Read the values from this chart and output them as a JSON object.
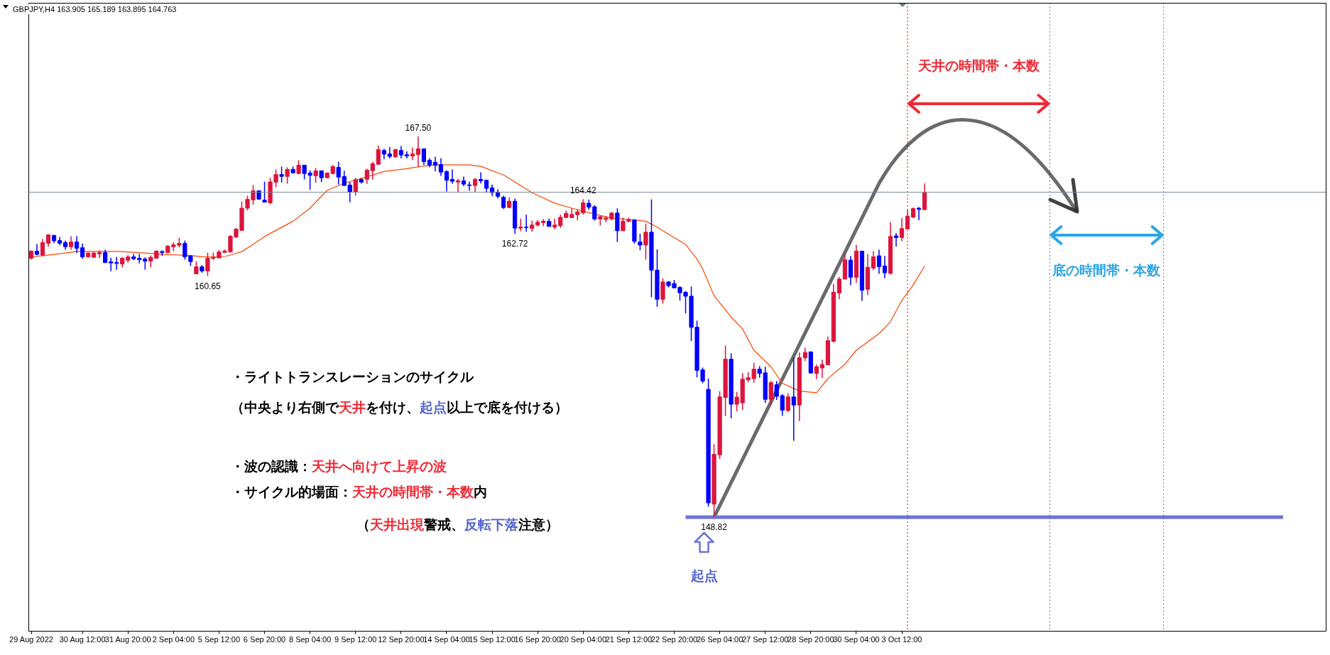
{
  "chart_data": {
    "type": "candlestick",
    "title": "GBPJPY,H4  163.905 165.189 163.895 164.763",
    "tick_labels": "x",
    "categories": [
      "29 Aug 2022",
      null,
      null,
      null,
      null,
      null,
      null,
      null,
      null,
      "30 Aug 12:00",
      null,
      null,
      null,
      null,
      null,
      null,
      null,
      "31 Aug 20:00",
      null,
      null,
      null,
      null,
      null,
      null,
      null,
      "2 Sep 04:00",
      null,
      null,
      null,
      null,
      null,
      null,
      null,
      "5 Sep 12:00",
      null,
      null,
      null,
      null,
      null,
      null,
      null,
      "6 Sep 20:00",
      null,
      null,
      null,
      null,
      null,
      null,
      null,
      "8 Sep 04:00",
      null,
      null,
      null,
      null,
      null,
      null,
      null,
      "9 Sep 12:00",
      null,
      null,
      null,
      null,
      null,
      null,
      null,
      "12 Sep 20:00",
      null,
      null,
      null,
      null,
      null,
      null,
      null,
      "14 Sep 04:00",
      null,
      null,
      null,
      null,
      null,
      null,
      null,
      "15 Sep 12:00",
      null,
      null,
      null,
      null,
      null,
      null,
      null,
      "16 Sep 20:00",
      null,
      null,
      null,
      null,
      null,
      null,
      null,
      "20 Sep 04:00",
      null,
      null,
      null,
      null,
      null,
      null,
      null,
      "21 Sep 12:00",
      null,
      null,
      null,
      null,
      null,
      null,
      null,
      "22 Sep 20:00",
      null,
      null,
      null,
      null,
      null,
      null,
      null,
      "26 Sep 04:00",
      null,
      null,
      null,
      null,
      null,
      null,
      null,
      "27 Sep 12:00",
      null,
      null,
      null,
      null,
      null,
      null,
      null,
      "28 Sep 20:00",
      null,
      null,
      null,
      null,
      null,
      null,
      null,
      "30 Sep 04:00",
      null,
      null,
      null,
      null,
      null,
      null,
      null,
      "3 Oct 12:00",
      null,
      null,
      null,
      null,
      null,
      null,
      null,
      null,
      null,
      null,
      null,
      null,
      null,
      null,
      null,
      null,
      null,
      null,
      null,
      null,
      null,
      null,
      null,
      null,
      null,
      null,
      null,
      null,
      null,
      null,
      null,
      null,
      null,
      null,
      null,
      null,
      null,
      null,
      null,
      null,
      null,
      null,
      null,
      null,
      null,
      null,
      null,
      null,
      null,
      null,
      null,
      null,
      null,
      null,
      null,
      null,
      null,
      null,
      null,
      null,
      null,
      null,
      null,
      null,
      null,
      null,
      null,
      null,
      null,
      null,
      null,
      null,
      null,
      null
    ],
    "ohlc": [
      [
        161.52,
        161.91,
        161.45,
        161.87
      ],
      [
        161.87,
        162.22,
        161.68,
        161.71
      ],
      [
        161.68,
        162.47,
        161.61,
        162.29
      ],
      [
        162.26,
        162.67,
        162.09,
        162.67
      ],
      [
        162.64,
        162.67,
        162.26,
        162.38
      ],
      [
        162.39,
        162.57,
        162.16,
        162.26
      ],
      [
        162.29,
        162.39,
        161.94,
        162.09
      ],
      [
        162.09,
        162.6,
        161.94,
        162.32
      ],
      [
        162.32,
        162.6,
        161.78,
        162.01
      ],
      [
        162.04,
        162.25,
        161.5,
        161.59
      ],
      [
        161.59,
        161.8,
        161.57,
        161.78
      ],
      [
        161.57,
        161.83,
        161.57,
        161.78
      ],
      [
        161.74,
        161.91,
        161.52,
        161.8
      ],
      [
        161.8,
        161.94,
        161.29,
        161.31
      ],
      [
        161.35,
        161.54,
        160.89,
        161.29
      ],
      [
        161.31,
        161.59,
        160.96,
        161.27
      ],
      [
        161.24,
        161.57,
        161.07,
        161.53
      ],
      [
        161.43,
        161.68,
        161.31,
        161.59
      ],
      [
        161.59,
        161.73,
        161.43,
        161.5
      ],
      [
        161.52,
        161.73,
        161.27,
        161.45
      ],
      [
        161.48,
        161.57,
        160.96,
        161.38
      ],
      [
        161.38,
        161.66,
        161.08,
        161.57
      ],
      [
        161.52,
        161.91,
        161.5,
        161.87
      ],
      [
        161.85,
        161.91,
        161.64,
        161.8
      ],
      [
        161.8,
        162.17,
        161.78,
        162.11
      ],
      [
        162.09,
        162.3,
        161.87,
        162.18
      ],
      [
        162.16,
        162.53,
        162.05,
        162.25
      ],
      [
        162.25,
        162.39,
        161.46,
        161.59
      ],
      [
        161.64,
        161.68,
        161.14,
        161.36
      ],
      [
        160.76,
        161.37,
        160.76,
        161.1
      ],
      [
        161.1,
        161.19,
        160.81,
        160.9
      ],
      [
        160.9,
        161.8,
        160.65,
        161.52
      ],
      [
        161.52,
        161.8,
        161.43,
        161.57
      ],
      [
        161.54,
        161.94,
        161.52,
        161.83
      ],
      [
        161.81,
        161.95,
        161.8,
        161.88
      ],
      [
        161.83,
        162.66,
        161.81,
        162.6
      ],
      [
        162.57,
        163.01,
        162.51,
        162.95
      ],
      [
        162.89,
        164.31,
        162.86,
        163.98
      ],
      [
        163.98,
        164.59,
        163.87,
        164.41
      ],
      [
        164.39,
        165.12,
        164.15,
        164.83
      ],
      [
        164.83,
        164.83,
        164.39,
        164.42
      ],
      [
        164.37,
        165.28,
        164.27,
        164.27
      ],
      [
        164.24,
        165.47,
        164.17,
        165.27
      ],
      [
        165.26,
        165.88,
        165.01,
        165.63
      ],
      [
        165.63,
        166.02,
        165.23,
        165.54
      ],
      [
        165.54,
        165.98,
        165.18,
        165.88
      ],
      [
        165.88,
        166.02,
        165.68,
        165.71
      ],
      [
        165.68,
        166.33,
        165.64,
        166.09
      ],
      [
        166.09,
        166.09,
        165.39,
        165.68
      ],
      [
        165.7,
        165.84,
        164.88,
        165.59
      ],
      [
        165.57,
        165.95,
        165.23,
        165.81
      ],
      [
        165.81,
        165.81,
        165.26,
        165.47
      ],
      [
        165.47,
        165.73,
        165.44,
        165.7
      ],
      [
        165.68,
        166.1,
        165.63,
        166.02
      ],
      [
        165.98,
        166.26,
        165.14,
        165.5
      ],
      [
        165.53,
        165.81,
        165.09,
        165.09
      ],
      [
        165.11,
        165.26,
        164.27,
        164.77
      ],
      [
        164.77,
        165.46,
        164.59,
        165.38
      ],
      [
        165.39,
        165.46,
        165.19,
        165.26
      ],
      [
        165.4,
        165.91,
        165.17,
        165.84
      ],
      [
        165.82,
        166.25,
        165.38,
        166.16
      ],
      [
        166.13,
        167.06,
        166.13,
        166.85
      ],
      [
        166.81,
        166.89,
        166.38,
        166.63
      ],
      [
        166.64,
        166.99,
        166.42,
        166.52
      ],
      [
        166.5,
        166.89,
        166.45,
        166.85
      ],
      [
        166.81,
        167.03,
        166.42,
        166.59
      ],
      [
        166.6,
        166.77,
        166.42,
        166.54
      ],
      [
        166.54,
        166.96,
        166.34,
        166.64
      ],
      [
        166.61,
        167.5,
        166.02,
        166.89
      ],
      [
        166.89,
        166.89,
        166.1,
        166.26
      ],
      [
        166.33,
        166.43,
        165.98,
        166.1
      ],
      [
        166.23,
        166.5,
        165.78,
        166.09
      ],
      [
        166.12,
        166.43,
        165.57,
        165.75
      ],
      [
        165.77,
        165.84,
        164.8,
        165.35
      ],
      [
        165.39,
        165.88,
        165.17,
        165.3
      ],
      [
        165.26,
        165.42,
        164.74,
        165.32
      ],
      [
        165.32,
        165.53,
        165.06,
        165.16
      ],
      [
        165.12,
        165.28,
        164.83,
        165.09
      ],
      [
        165.09,
        165.46,
        164.78,
        165.39
      ],
      [
        165.39,
        165.74,
        165.19,
        165.32
      ],
      [
        165.35,
        165.35,
        164.74,
        164.95
      ],
      [
        164.98,
        165.14,
        164.56,
        164.74
      ],
      [
        164.77,
        164.91,
        164.45,
        164.56
      ],
      [
        164.51,
        164.59,
        163.94,
        164.01
      ],
      [
        164.01,
        164.51,
        163.98,
        164.32
      ],
      [
        164.32,
        164.45,
        162.72,
        163.0
      ],
      [
        163.0,
        163.47,
        162.85,
        163.05
      ],
      [
        163.05,
        163.66,
        162.82,
        163.03
      ],
      [
        162.98,
        163.37,
        162.82,
        163.15
      ],
      [
        163.15,
        163.4,
        163.08,
        163.29
      ],
      [
        163.27,
        163.45,
        163.1,
        163.34
      ],
      [
        163.33,
        163.47,
        163.08,
        163.08
      ],
      [
        163.05,
        163.47,
        162.94,
        163.15
      ],
      [
        163.12,
        163.67,
        163.01,
        163.53
      ],
      [
        163.52,
        163.85,
        163.49,
        163.72
      ],
      [
        163.52,
        163.98,
        163.49,
        163.67
      ],
      [
        163.66,
        163.91,
        163.38,
        163.8
      ],
      [
        163.75,
        164.42,
        163.67,
        164.24
      ],
      [
        164.22,
        164.4,
        163.9,
        164.03
      ],
      [
        164.05,
        164.12,
        163.37,
        163.45
      ],
      [
        163.45,
        163.61,
        163.13,
        163.56
      ],
      [
        163.43,
        163.59,
        163.29,
        163.49
      ],
      [
        163.45,
        163.79,
        163.38,
        163.74
      ],
      [
        163.74,
        163.97,
        162.32,
        162.87
      ],
      [
        162.87,
        163.52,
        162.87,
        163.34
      ],
      [
        163.33,
        163.52,
        163.29,
        163.41
      ],
      [
        163.4,
        163.44,
        162.24,
        162.35
      ],
      [
        162.32,
        162.73,
        161.91,
        162.17
      ],
      [
        162.17,
        163.22,
        161.46,
        162.8
      ],
      [
        162.8,
        164.41,
        159.61,
        160.94
      ],
      [
        160.94,
        161.96,
        159.14,
        159.51
      ],
      [
        159.51,
        160.53,
        159.3,
        160.36
      ],
      [
        160.36,
        160.4,
        160.09,
        160.18
      ],
      [
        160.28,
        160.46,
        160.07,
        160.07
      ],
      [
        160.09,
        160.15,
        159.44,
        159.83
      ],
      [
        159.85,
        159.92,
        158.82,
        159.66
      ],
      [
        159.66,
        160.13,
        157.46,
        158.13
      ],
      [
        158.14,
        158.46,
        155.68,
        156.02
      ],
      [
        156.05,
        156.16,
        155.39,
        155.5
      ],
      [
        155.09,
        155.62,
        149.34,
        149.52
      ],
      [
        149.46,
        152.4,
        148.82,
        151.9
      ],
      [
        151.88,
        155.0,
        151.67,
        154.72
      ],
      [
        154.69,
        157.24,
        153.78,
        156.57
      ],
      [
        156.57,
        156.86,
        153.67,
        154.36
      ],
      [
        154.36,
        154.97,
        154.01,
        154.71
      ],
      [
        154.43,
        155.89,
        154.08,
        155.59
      ],
      [
        155.56,
        155.94,
        155.44,
        155.66
      ],
      [
        155.62,
        156.4,
        155.41,
        156.08
      ],
      [
        156.08,
        156.23,
        155.66,
        155.87
      ],
      [
        155.9,
        156.2,
        154.43,
        154.6
      ],
      [
        154.6,
        155.5,
        154.34,
        155.42
      ],
      [
        155.32,
        155.5,
        154.57,
        154.75
      ],
      [
        154.78,
        154.86,
        153.79,
        154.07
      ],
      [
        154.05,
        154.9,
        153.99,
        154.72
      ],
      [
        154.72,
        156.66,
        152.57,
        154.32
      ],
      [
        154.32,
        156.9,
        153.53,
        156.64
      ],
      [
        156.64,
        157.13,
        156.49,
        156.9
      ],
      [
        156.93,
        156.95,
        155.89,
        155.89
      ],
      [
        155.87,
        156.31,
        155.59,
        156.2
      ],
      [
        156.14,
        156.55,
        155.64,
        156.31
      ],
      [
        156.29,
        157.69,
        156.29,
        157.48
      ],
      [
        157.44,
        160.26,
        157.4,
        159.86
      ],
      [
        159.82,
        160.61,
        159.51,
        160.5
      ],
      [
        160.5,
        161.78,
        160.5,
        161.45
      ],
      [
        161.43,
        161.64,
        160.21,
        160.59
      ],
      [
        160.59,
        162.18,
        160.31,
        161.87
      ],
      [
        161.87,
        161.87,
        159.43,
        159.95
      ],
      [
        160.0,
        161.72,
        159.72,
        161.08
      ],
      [
        161.04,
        161.87,
        160.94,
        161.59
      ],
      [
        161.64,
        161.94,
        160.76,
        161.11
      ],
      [
        161.14,
        161.64,
        160.54,
        160.81
      ],
      [
        160.78,
        163.29,
        160.73,
        162.59
      ],
      [
        162.62,
        162.76,
        162.1,
        162.54
      ],
      [
        162.54,
        163.49,
        162.36,
        162.98
      ],
      [
        162.96,
        163.91,
        162.94,
        163.59
      ],
      [
        163.54,
        164.01,
        163.48,
        163.96
      ],
      [
        163.98,
        164.03,
        163.4,
        163.92
      ],
      [
        163.905,
        165.189,
        163.895,
        164.763
      ],
      null,
      null,
      null,
      null,
      null,
      null,
      null,
      null,
      null,
      null,
      null,
      null,
      null,
      null,
      null,
      null,
      null,
      null,
      null,
      null,
      null,
      null,
      null,
      null,
      null,
      null,
      null,
      null,
      null,
      null,
      null,
      null,
      null,
      null,
      null,
      null,
      null,
      null,
      null,
      null,
      null,
      null,
      null,
      null,
      null,
      null,
      null,
      null,
      null,
      null,
      null,
      null,
      null,
      null,
      null,
      null,
      null,
      null,
      null,
      null,
      null,
      null,
      null,
      null,
      null,
      null,
      null,
      null,
      null,
      null
    ],
    "colors": [
      "#dc143c",
      "#0000ff",
      "#dc143c",
      "#dc143c",
      "#0000ff",
      "#0000ff",
      "#0000ff",
      "#dc143c",
      "#0000ff",
      "#0000ff",
      "#dc143c",
      "#dc143c",
      "#dc143c",
      "#0000ff",
      "#0000ff",
      "#0000ff",
      "#dc143c",
      "#dc143c",
      "#0000ff",
      "#0000ff",
      "#0000ff",
      "#dc143c",
      "#dc143c",
      "#0000ff",
      "#dc143c",
      "#dc143c",
      "#dc143c",
      "#0000ff",
      "#0000ff",
      "#dc143c",
      "#0000ff",
      "#dc143c",
      "#dc143c",
      "#dc143c",
      "#dc143c",
      "#dc143c",
      "#dc143c",
      "#dc143c",
      "#dc143c",
      "#dc143c",
      "#0000ff",
      "#0000ff",
      "#dc143c",
      "#dc143c",
      "#0000ff",
      "#dc143c",
      "#0000ff",
      "#dc143c",
      "#0000ff",
      "#0000ff",
      "#dc143c",
      "#0000ff",
      "#dc143c",
      "#dc143c",
      "#0000ff",
      "#0000ff",
      "#0000ff",
      "#dc143c",
      "#0000ff",
      "#dc143c",
      "#dc143c",
      "#dc143c",
      "#0000ff",
      "#0000ff",
      "#dc143c",
      "#0000ff",
      "#0000ff",
      "#dc143c",
      "#dc143c",
      "#0000ff",
      "#0000ff",
      "#0000ff",
      "#0000ff",
      "#0000ff",
      "#0000ff",
      "#dc143c",
      "#0000ff",
      "#0000ff",
      "#dc143c",
      "#0000ff",
      "#0000ff",
      "#0000ff",
      "#0000ff",
      "#0000ff",
      "#dc143c",
      "#0000ff",
      "#dc143c",
      "#0000ff",
      "#dc143c",
      "#dc143c",
      "#dc143c",
      "#0000ff",
      "#dc143c",
      "#dc143c",
      "#dc143c",
      "#dc143c",
      "#dc143c",
      "#dc143c",
      "#0000ff",
      "#0000ff",
      "#dc143c",
      "#dc143c",
      "#dc143c",
      "#0000ff",
      "#dc143c",
      "#dc143c",
      "#0000ff",
      "#0000ff",
      "#dc143c",
      "#0000ff",
      "#0000ff",
      "#dc143c",
      "#0000ff",
      "#0000ff",
      "#0000ff",
      "#0000ff",
      "#0000ff",
      "#0000ff",
      "#0000ff",
      "#0000ff",
      "#dc143c",
      "#dc143c",
      "#dc143c",
      "#0000ff",
      "#dc143c",
      "#dc143c",
      "#dc143c",
      "#dc143c",
      "#0000ff",
      "#0000ff",
      "#dc143c",
      "#0000ff",
      "#0000ff",
      "#dc143c",
      "#0000ff",
      "#dc143c",
      "#dc143c",
      "#0000ff",
      "#dc143c",
      "#dc143c",
      "#dc143c",
      "#dc143c",
      "#dc143c",
      "#dc143c",
      "#0000ff",
      "#dc143c",
      "#0000ff",
      "#dc143c",
      "#dc143c",
      "#0000ff",
      "#0000ff",
      "#dc143c",
      "#0000ff",
      "#dc143c",
      "#dc143c",
      "#dc143c",
      "#0000ff",
      "#dc143c",
      null,
      null,
      null,
      null,
      null,
      null,
      null,
      null,
      null,
      null,
      null,
      null,
      null,
      null,
      null,
      null,
      null,
      null,
      null,
      null,
      null,
      null,
      null,
      null,
      null,
      null,
      null,
      null,
      null,
      null,
      null,
      null,
      null,
      null,
      null,
      null,
      null,
      null,
      null,
      null,
      null,
      null,
      null,
      null,
      null,
      null,
      null,
      null,
      null,
      null,
      null,
      null,
      null,
      null,
      null,
      null,
      null,
      null,
      null,
      null,
      null,
      null,
      null,
      null,
      null,
      null,
      null,
      null,
      null,
      null
    ],
    "series": [
      {
        "type": "line",
        "color": "#ff4500",
        "values": [
          161.59,
          null,
          null,
          null,
          161.71,
          null,
          161.78,
          null,
          161.86,
          null,
          null,
          null,
          null,
          null,
          null,
          161.86,
          null,
          null,
          null,
          null,
          161.78,
          null,
          null,
          161.71,
          null,
          null,
          null,
          null,
          161.66,
          null,
          161.6,
          null,
          161.58,
          null,
          161.61,
          161.68,
          null,
          161.85,
          null,
          162.2,
          null,
          162.59,
          null,
          null,
          null,
          null,
          163.34,
          null,
          null,
          163.98,
          null,
          null,
          164.85,
          null,
          null,
          165.2,
          null,
          null,
          null,
          165.52,
          null,
          null,
          165.78,
          null,
          null,
          null,
          165.92,
          null,
          null,
          166.05,
          null,
          null,
          166.1,
          null,
          null,
          166.1,
          null,
          166.1,
          null,
          166.03,
          null,
          null,
          null,
          165.61,
          null,
          null,
          null,
          null,
          164.74,
          null,
          null,
          null,
          164.22,
          null,
          null,
          163.98,
          null,
          null,
          null,
          163.69,
          null,
          null,
          163.49,
          null,
          null,
          null,
          163.4,
          null,
          163.34,
          null,
          163.05,
          null,
          162.7,
          null,
          null,
          162.2,
          null,
          161.48,
          161.0,
          null,
          159.68,
          null,
          null,
          158.64,
          null,
          158.06,
          null,
          157.01,
          null,
          null,
          156.2,
          null,
          155.39,
          null,
          null,
          155.01,
          null,
          null,
          154.92,
          null,
          155.62,
          null,
          null,
          156.32,
          null,
          157.01,
          null,
          null,
          null,
          157.83,
          null,
          158.41,
          null,
          159.45,
          null,
          160.21,
          null,
          161.14,
          null,
          null,
          null,
          null,
          null,
          null,
          null,
          null,
          null,
          null,
          null,
          null,
          null,
          null,
          null,
          null,
          null,
          null,
          null,
          null,
          null,
          null,
          null,
          null,
          null,
          null,
          null,
          null,
          null,
          null,
          null,
          null,
          null,
          null,
          null,
          null,
          null,
          null,
          null,
          null,
          null,
          null,
          null,
          null,
          null,
          null,
          null,
          null,
          null,
          null,
          null,
          null,
          null,
          null,
          null,
          null,
          null,
          null,
          null,
          null,
          null,
          null,
          null,
          null,
          null,
          null,
          null,
          null,
          null,
          null
        ]
      },
      {
        "type": "line",
        "color": "#6b74d6",
        "values": [
          null,
          null,
          null,
          null,
          null,
          null,
          null,
          null,
          null,
          null,
          null,
          null,
          null,
          null,
          null,
          null,
          null,
          null,
          null,
          null,
          null,
          null,
          null,
          null,
          null,
          null,
          null,
          null,
          null,
          null,
          null,
          null,
          null,
          null,
          null,
          null,
          null,
          null,
          null,
          null,
          null,
          null,
          null,
          null,
          null,
          null,
          null,
          null,
          null,
          null,
          null,
          null,
          null,
          null,
          null,
          null,
          null,
          null,
          null,
          null,
          null,
          null,
          null,
          null,
          null,
          null,
          null,
          null,
          null,
          null,
          null,
          null,
          null,
          null,
          null,
          null,
          null,
          null,
          null,
          null,
          null,
          null,
          null,
          null,
          null,
          null,
          null,
          null,
          null,
          null,
          null,
          null,
          null,
          null,
          null,
          null,
          null,
          null,
          null,
          null,
          null,
          null,
          null,
          null,
          null,
          null,
          null,
          null,
          null,
          null,
          null,
          null,
          null,
          null,
          null,
          148.82,
          148.82,
          148.82,
          148.82,
          148.82,
          148.82,
          148.82,
          148.82,
          148.82,
          148.82,
          148.82,
          148.82,
          148.82,
          148.82,
          148.82,
          148.82,
          148.82,
          148.82,
          148.82,
          148.82,
          148.82,
          148.82,
          148.82,
          148.82,
          148.82,
          148.82,
          148.82,
          148.82,
          148.82,
          148.82,
          148.82,
          148.82,
          148.82,
          148.82,
          148.82,
          148.82,
          148.82,
          148.82,
          148.82,
          148.82,
          148.82,
          148.82,
          148.82,
          148.82,
          148.82,
          148.82,
          148.82,
          148.82,
          148.82,
          148.82,
          148.82,
          148.82,
          148.82,
          148.82,
          148.82,
          148.82,
          148.82,
          148.82,
          148.82,
          148.82,
          148.82,
          148.82,
          148.82,
          148.82,
          148.82,
          148.82,
          148.82,
          148.82,
          148.82,
          148.82,
          148.82,
          148.82,
          148.82,
          148.82,
          148.82,
          148.82,
          148.82,
          148.82,
          148.82,
          148.82,
          148.82,
          148.82,
          148.82,
          148.82,
          148.82,
          148.82,
          148.82,
          148.82,
          148.82,
          148.82,
          148.82,
          148.82,
          148.82,
          148.82,
          148.82,
          148.82,
          148.82,
          148.82,
          148.82,
          148.82,
          148.82,
          148.82,
          148.82,
          148.82,
          148.82,
          148.82,
          null,
          null,
          null,
          null,
          null,
          null,
          null
        ]
      }
    ],
    "ref_lines": [
      {
        "axis": "y",
        "value": 164.763,
        "color": "#7a8896",
        "line_style": "solid"
      }
    ],
    "annotations": [
      {
        "text": "167.50",
        "y": 167.5
      },
      {
        "text": "164.42",
        "y": 164.42
      },
      {
        "text": "162.72",
        "y": 162.72
      },
      {
        "text": "160.65",
        "y": 160.65
      },
      {
        "text": "148.82",
        "y": 148.82
      },
      "・ライトトランスレーションのサイクル",
      "（中央より右側で",
      "天井",
      "を付け、",
      "起点",
      "以上で底を付ける）",
      "・波の認識：",
      "天井へ向けて上昇の波",
      "・サイクル的場面：",
      "天井の時間帯・本数",
      "内",
      "（",
      "天井出現",
      "警戒、",
      "反転下落",
      "注意）",
      "天井の時間帯・本数",
      "底の時間帯・本数",
      "起点"
    ]
  }
}
